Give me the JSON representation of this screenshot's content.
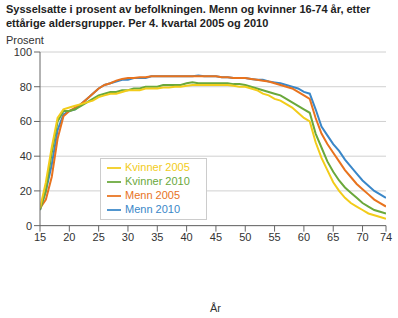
{
  "chart_data": {
    "type": "line",
    "title": "Sysselsatte i prosent av befolkningen. Menn og kvinner 16-74 år, etter ettårige aldersgrupper. Per 4. kvartal 2005 og 2010",
    "y_label": "Prosent",
    "x_label": "År",
    "x": [
      15,
      16,
      17,
      18,
      19,
      20,
      21,
      22,
      23,
      24,
      25,
      26,
      27,
      28,
      29,
      30,
      31,
      32,
      33,
      34,
      35,
      36,
      37,
      38,
      39,
      40,
      41,
      42,
      43,
      44,
      45,
      46,
      47,
      48,
      49,
      50,
      51,
      52,
      53,
      54,
      55,
      56,
      57,
      58,
      59,
      60,
      61,
      62,
      63,
      64,
      65,
      66,
      67,
      68,
      69,
      70,
      71,
      72,
      73,
      74
    ],
    "series": [
      {
        "name": "Menn 2010",
        "color": "#3a87c8",
        "values": [
          9,
          20,
          35,
          55,
          64,
          66,
          67,
          70,
          73,
          76,
          79,
          81,
          82,
          83,
          84,
          84,
          85,
          85,
          85,
          86,
          86,
          86,
          86,
          86,
          86,
          86,
          86,
          86.5,
          86,
          86,
          86,
          85.5,
          85.5,
          85,
          85,
          85,
          84.5,
          84,
          84,
          83,
          82.5,
          82,
          81,
          80,
          79,
          77,
          76,
          67,
          57,
          52,
          47,
          43,
          38,
          34,
          30,
          26,
          23,
          20,
          18,
          16
        ]
      },
      {
        "name": "Menn 2005",
        "color": "#e8731e",
        "values": [
          10,
          15,
          28,
          50,
          63,
          66,
          68,
          70,
          73,
          76,
          79,
          81,
          82,
          83.5,
          84.5,
          85,
          85,
          85.5,
          85.5,
          86,
          86,
          86,
          86,
          86,
          86,
          86,
          86,
          86,
          86,
          86,
          86,
          85.5,
          85.5,
          85,
          85,
          85,
          84.5,
          84,
          83.5,
          83,
          82,
          81,
          80,
          79,
          77,
          75,
          73,
          62,
          53,
          47,
          42,
          37,
          32,
          28,
          24,
          21,
          18,
          15,
          13,
          11
        ]
      },
      {
        "name": "Kvinner 2010",
        "color": "#6aa83b",
        "values": [
          9,
          20,
          42,
          60,
          66,
          66,
          67,
          69,
          71,
          73,
          75,
          76,
          77,
          77,
          78,
          78,
          79,
          79,
          80,
          80,
          80,
          81,
          81,
          81,
          81,
          82,
          82.5,
          82,
          82,
          82,
          82,
          82,
          82,
          81.5,
          81.5,
          81,
          80,
          79,
          78,
          77,
          76,
          75,
          73,
          71,
          69,
          67,
          65,
          53,
          45,
          37,
          31,
          26,
          22,
          19,
          16,
          13,
          11,
          9,
          8,
          7
        ]
      },
      {
        "name": "Kvinner 2005",
        "color": "#f2cc1a",
        "values": [
          10,
          25,
          45,
          62,
          67,
          68,
          69,
          70,
          71,
          72,
          74,
          75,
          76,
          76,
          77,
          78,
          78,
          78,
          79,
          79,
          79,
          79.5,
          79.5,
          80,
          80,
          80.5,
          81,
          81,
          81,
          81,
          81,
          81,
          81,
          80.5,
          80,
          80,
          79,
          78,
          76,
          75,
          73,
          72,
          70,
          68,
          65,
          62,
          60,
          48,
          39,
          32,
          25,
          20,
          16,
          13,
          11,
          9,
          7,
          6,
          5,
          4
        ]
      }
    ],
    "xlim": [
      15,
      74
    ],
    "xticks": [
      15,
      20,
      25,
      30,
      35,
      40,
      45,
      50,
      55,
      60,
      65,
      70,
      74
    ],
    "ylim": [
      0,
      100
    ],
    "yticks": [
      0,
      20,
      40,
      60,
      80,
      100
    ],
    "grid": true,
    "legend": "left"
  }
}
